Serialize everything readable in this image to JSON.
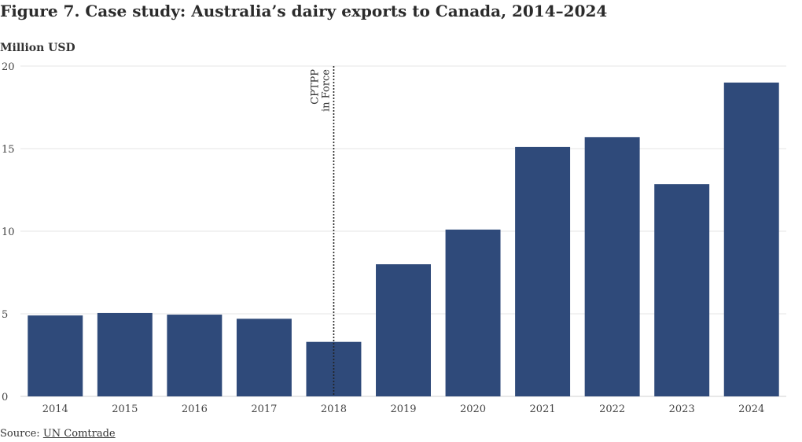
{
  "chart_data": {
    "type": "bar",
    "title": "Figure 7. Case study: Australia’s dairy exports to Canada, 2014–2024",
    "ylabel": "Million USD",
    "xlabel": "",
    "ylim": [
      0,
      20
    ],
    "yticks": [
      0,
      5,
      10,
      15,
      20
    ],
    "grid": true,
    "categories": [
      "2014",
      "2015",
      "2016",
      "2017",
      "2018",
      "2019",
      "2020",
      "2021",
      "2022",
      "2023",
      "2024"
    ],
    "values": [
      4.9,
      5.05,
      4.95,
      4.7,
      3.3,
      8.0,
      10.1,
      15.1,
      15.7,
      12.85,
      19.0
    ],
    "bar_color": "#2f4a7a",
    "annotation": {
      "category": "2018",
      "lines": [
        "CPTPP",
        "in Force"
      ]
    }
  },
  "source": {
    "label": "Source:",
    "link_text": "UN Comtrade"
  }
}
